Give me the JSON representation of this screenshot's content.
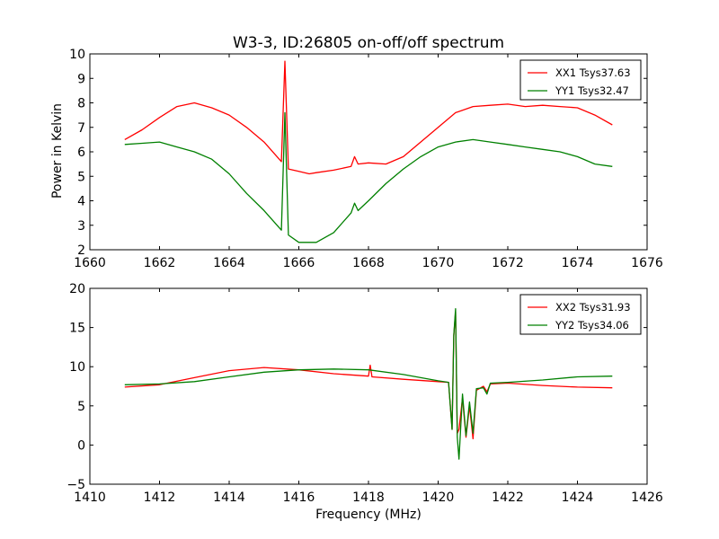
{
  "figure": {
    "title": "W3-3, ID:26805 on-off/off spectrum",
    "ylabel": "Power in Kelvin",
    "xlabel": "Frequency (MHz)"
  },
  "chart_data": [
    {
      "type": "line",
      "xlim": [
        1660,
        1676
      ],
      "ylim": [
        2,
        10
      ],
      "xticks": [
        1660,
        1662,
        1664,
        1666,
        1668,
        1670,
        1672,
        1674,
        1676
      ],
      "yticks": [
        2,
        3,
        4,
        5,
        6,
        7,
        8,
        9,
        10
      ],
      "grid": false,
      "legend_position": "top-right",
      "series": [
        {
          "name": "XX1 Tsys37.63",
          "color": "#ff0000",
          "points": [
            [
              1661.0,
              6.5
            ],
            [
              1661.5,
              6.9
            ],
            [
              1662.0,
              7.4
            ],
            [
              1662.5,
              7.85
            ],
            [
              1663.0,
              8.0
            ],
            [
              1663.5,
              7.8
            ],
            [
              1664.0,
              7.5
            ],
            [
              1664.5,
              7.0
            ],
            [
              1665.0,
              6.4
            ],
            [
              1665.5,
              5.6
            ],
            [
              1665.6,
              9.7
            ],
            [
              1665.7,
              5.3
            ],
            [
              1666.0,
              5.2
            ],
            [
              1666.3,
              5.1
            ],
            [
              1666.5,
              5.15
            ],
            [
              1667.0,
              5.25
            ],
            [
              1667.5,
              5.4
            ],
            [
              1667.6,
              5.8
            ],
            [
              1667.7,
              5.5
            ],
            [
              1668.0,
              5.55
            ],
            [
              1668.5,
              5.5
            ],
            [
              1669.0,
              5.8
            ],
            [
              1669.5,
              6.4
            ],
            [
              1670.0,
              7.0
            ],
            [
              1670.5,
              7.6
            ],
            [
              1671.0,
              7.85
            ],
            [
              1671.5,
              7.9
            ],
            [
              1672.0,
              7.95
            ],
            [
              1672.5,
              7.85
            ],
            [
              1673.0,
              7.9
            ],
            [
              1673.5,
              7.85
            ],
            [
              1674.0,
              7.8
            ],
            [
              1674.5,
              7.5
            ],
            [
              1675.0,
              7.1
            ]
          ]
        },
        {
          "name": "YY1 Tsys32.47",
          "color": "#008000",
          "points": [
            [
              1661.0,
              6.3
            ],
            [
              1661.5,
              6.35
            ],
            [
              1662.0,
              6.4
            ],
            [
              1662.5,
              6.2
            ],
            [
              1663.0,
              6.0
            ],
            [
              1663.5,
              5.7
            ],
            [
              1664.0,
              5.1
            ],
            [
              1664.5,
              4.3
            ],
            [
              1665.0,
              3.6
            ],
            [
              1665.5,
              2.8
            ],
            [
              1665.6,
              7.6
            ],
            [
              1665.7,
              2.6
            ],
            [
              1666.0,
              2.3
            ],
            [
              1666.5,
              2.3
            ],
            [
              1667.0,
              2.7
            ],
            [
              1667.5,
              3.5
            ],
            [
              1667.6,
              3.9
            ],
            [
              1667.7,
              3.6
            ],
            [
              1668.0,
              4.0
            ],
            [
              1668.5,
              4.7
            ],
            [
              1669.0,
              5.3
            ],
            [
              1669.5,
              5.8
            ],
            [
              1670.0,
              6.2
            ],
            [
              1670.5,
              6.4
            ],
            [
              1671.0,
              6.5
            ],
            [
              1671.5,
              6.4
            ],
            [
              1672.0,
              6.3
            ],
            [
              1672.5,
              6.2
            ],
            [
              1673.0,
              6.1
            ],
            [
              1673.5,
              6.0
            ],
            [
              1674.0,
              5.8
            ],
            [
              1674.5,
              5.5
            ],
            [
              1675.0,
              5.4
            ]
          ]
        }
      ]
    },
    {
      "type": "line",
      "xlim": [
        1410,
        1426
      ],
      "ylim": [
        -5,
        20
      ],
      "xticks": [
        1410,
        1412,
        1414,
        1416,
        1418,
        1420,
        1422,
        1424,
        1426
      ],
      "yticks": [
        -5,
        0,
        5,
        10,
        15,
        20
      ],
      "grid": false,
      "legend_position": "top-right",
      "series": [
        {
          "name": "XX2 Tsys31.93",
          "color": "#ff0000",
          "points": [
            [
              1411.0,
              7.4
            ],
            [
              1412.0,
              7.7
            ],
            [
              1413.0,
              8.6
            ],
            [
              1414.0,
              9.5
            ],
            [
              1415.0,
              9.9
            ],
            [
              1416.0,
              9.6
            ],
            [
              1417.0,
              9.1
            ],
            [
              1418.0,
              8.8
            ],
            [
              1418.05,
              10.2
            ],
            [
              1418.1,
              8.7
            ],
            [
              1419.0,
              8.4
            ],
            [
              1420.0,
              8.1
            ],
            [
              1420.3,
              8.0
            ],
            [
              1420.4,
              2.0
            ],
            [
              1420.45,
              14.0
            ],
            [
              1420.5,
              17.0
            ],
            [
              1420.55,
              1.5
            ],
            [
              1420.6,
              2.0
            ],
            [
              1420.7,
              6.0
            ],
            [
              1420.8,
              1.0
            ],
            [
              1420.9,
              5.0
            ],
            [
              1421.0,
              0.8
            ],
            [
              1421.1,
              7.0
            ],
            [
              1421.3,
              7.5
            ],
            [
              1421.4,
              6.8
            ],
            [
              1421.5,
              7.8
            ],
            [
              1422.0,
              7.9
            ],
            [
              1423.0,
              7.6
            ],
            [
              1424.0,
              7.4
            ],
            [
              1425.0,
              7.3
            ]
          ]
        },
        {
          "name": "YY2 Tsys34.06",
          "color": "#008000",
          "points": [
            [
              1411.0,
              7.7
            ],
            [
              1412.0,
              7.8
            ],
            [
              1413.0,
              8.1
            ],
            [
              1414.0,
              8.7
            ],
            [
              1415.0,
              9.3
            ],
            [
              1416.0,
              9.6
            ],
            [
              1417.0,
              9.7
            ],
            [
              1418.0,
              9.6
            ],
            [
              1419.0,
              9.0
            ],
            [
              1420.0,
              8.2
            ],
            [
              1420.3,
              8.0
            ],
            [
              1420.4,
              2.0
            ],
            [
              1420.45,
              14.0
            ],
            [
              1420.5,
              17.4
            ],
            [
              1420.55,
              1.0
            ],
            [
              1420.6,
              -1.8
            ],
            [
              1420.7,
              6.5
            ],
            [
              1420.8,
              1.2
            ],
            [
              1420.9,
              5.5
            ],
            [
              1421.0,
              1.5
            ],
            [
              1421.1,
              7.2
            ],
            [
              1421.3,
              7.3
            ],
            [
              1421.4,
              6.5
            ],
            [
              1421.5,
              7.9
            ],
            [
              1422.0,
              8.0
            ],
            [
              1423.0,
              8.3
            ],
            [
              1424.0,
              8.7
            ],
            [
              1425.0,
              8.8
            ]
          ]
        }
      ]
    }
  ]
}
